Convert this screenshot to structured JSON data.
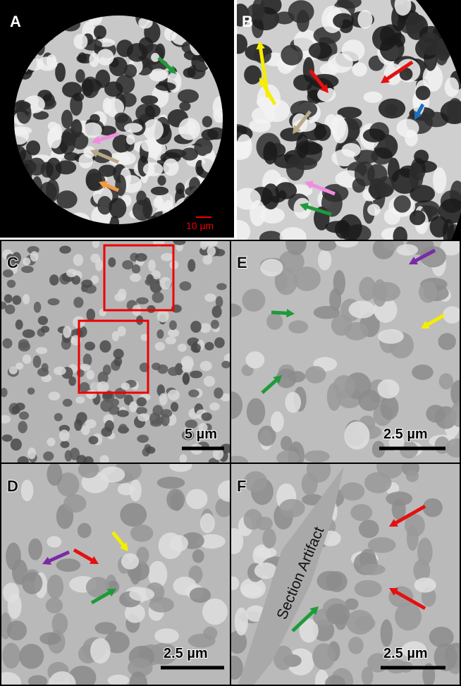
{
  "panels": [
    {
      "label": "A",
      "scale_bar": "10 µm"
    },
    {
      "label": "B"
    },
    {
      "label": "C",
      "scale_bar": "5 µm"
    },
    {
      "label": "E",
      "scale_bar": "2.5 µm"
    },
    {
      "label": "D",
      "scale_bar": "2.5 µm"
    },
    {
      "label": "F",
      "scale_bar": "2.5 µm",
      "annotation": "Section Artifact"
    }
  ]
}
